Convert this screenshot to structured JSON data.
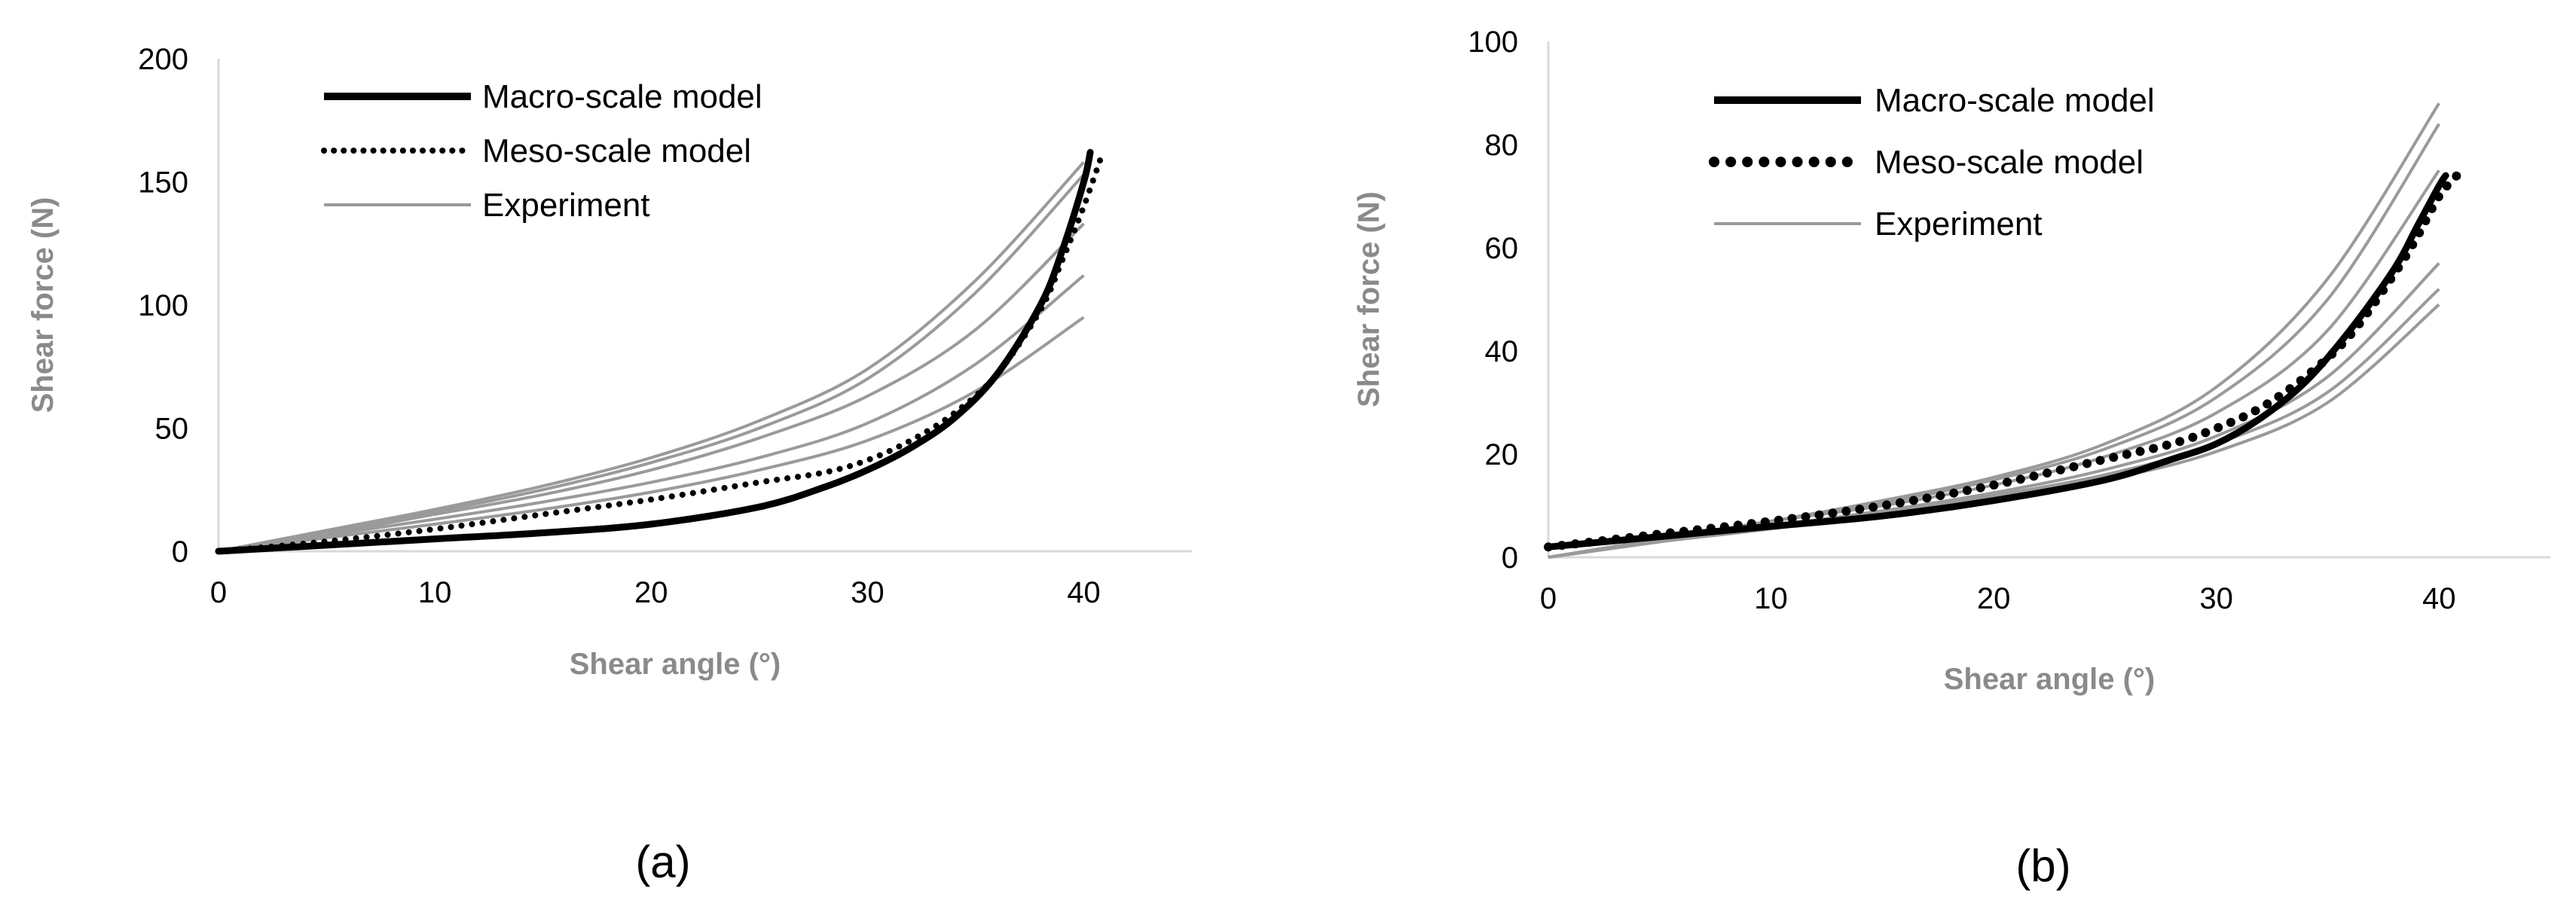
{
  "chart_data": [
    {
      "type": "line",
      "panel_label": "(a)",
      "xlabel": "Shear angle (°)",
      "ylabel": "Shear force (N)",
      "xlim": [
        0,
        45
      ],
      "ylim": [
        0,
        200
      ],
      "xticks": [
        0,
        10,
        20,
        30,
        40
      ],
      "yticks": [
        0,
        50,
        100,
        150,
        200
      ],
      "grid": false,
      "legend_position": "top-left",
      "series": [
        {
          "name": "Macro-scale model",
          "style": "solid",
          "color": "#000000",
          "x": [
            0,
            5,
            10,
            15,
            20,
            25,
            28,
            30,
            32,
            34,
            36,
            38,
            39,
            40,
            40.3
          ],
          "y": [
            0,
            2.5,
            5,
            7.5,
            11,
            18,
            26,
            33,
            42,
            54,
            72,
            100,
            122,
            150,
            162
          ]
        },
        {
          "name": "Meso-scale model",
          "style": "dotted",
          "color": "#000000",
          "x": [
            0,
            5,
            10,
            15,
            20,
            25,
            28,
            30,
            32,
            34,
            36,
            38,
            39,
            40,
            40.8
          ],
          "y": [
            0,
            4,
            9,
            15,
            21,
            28,
            32,
            37,
            45,
            56,
            72,
            98,
            118,
            140,
            160
          ]
        },
        {
          "name": "Experiment",
          "style": "solid",
          "color": "#9a9a9a",
          "x": [
            0,
            5,
            10,
            15,
            20,
            25,
            30,
            35,
            40
          ],
          "y": [
            0,
            7,
            15,
            23,
            33,
            46,
            63,
            90,
            133
          ]
        },
        {
          "name": "",
          "style": "solid",
          "color": "#9a9a9a",
          "x": [
            0,
            5,
            10,
            15,
            20,
            25,
            30,
            35,
            40
          ],
          "y": [
            0,
            8,
            16,
            25,
            36,
            50,
            70,
            105,
            153
          ]
        },
        {
          "name": "",
          "style": "solid",
          "color": "#9a9a9a",
          "x": [
            0,
            5,
            10,
            15,
            20,
            25,
            30,
            35,
            40
          ],
          "y": [
            0,
            8.5,
            17,
            26.5,
            38,
            53,
            74,
            110,
            158
          ]
        },
        {
          "name": "",
          "style": "solid",
          "color": "#9a9a9a",
          "x": [
            0,
            5,
            10,
            15,
            20,
            25,
            30,
            35,
            40
          ],
          "y": [
            0,
            6.5,
            13,
            20,
            28,
            38,
            52,
            76,
            112
          ]
        },
        {
          "name": "",
          "style": "solid",
          "color": "#9a9a9a",
          "x": [
            0,
            5,
            10,
            15,
            20,
            25,
            30,
            35,
            40
          ],
          "y": [
            0,
            5.5,
            11,
            17,
            24,
            33,
            45,
            65,
            95
          ]
        }
      ]
    },
    {
      "type": "line",
      "panel_label": "(b)",
      "xlabel": "Shear angle (°)",
      "ylabel": "Shear force (N)",
      "xlim": [
        0,
        45
      ],
      "ylim": [
        0,
        100
      ],
      "xticks": [
        0,
        10,
        20,
        30,
        40
      ],
      "yticks": [
        0,
        20,
        40,
        60,
        80,
        100
      ],
      "grid": false,
      "legend_position": "top-left",
      "series": [
        {
          "name": "Macro-scale model",
          "style": "solid",
          "color": "#000000",
          "x": [
            0,
            5,
            10,
            15,
            20,
            25,
            28,
            30,
            32,
            34,
            36,
            38,
            39,
            40,
            40.3
          ],
          "y": [
            2,
            4,
            6,
            8,
            11,
            15,
            19,
            22,
            27,
            34,
            44,
            56,
            64,
            72,
            74
          ]
        },
        {
          "name": "Meso-scale model",
          "style": "dotted",
          "color": "#000000",
          "x": [
            0,
            5,
            10,
            15,
            20,
            25,
            28,
            30,
            32,
            34,
            36,
            38,
            39,
            40,
            40.8
          ],
          "y": [
            2,
            4.5,
            7,
            10,
            14,
            19,
            22,
            25,
            29,
            35,
            43,
            55,
            62,
            70,
            74
          ]
        },
        {
          "name": "Experiment",
          "style": "solid",
          "color": "#9a9a9a",
          "x": [
            0,
            5,
            10,
            15,
            20,
            25,
            30,
            35,
            40
          ],
          "y": [
            0,
            3.5,
            7,
            11,
            15.5,
            22,
            33,
            54,
            88
          ]
        },
        {
          "name": "",
          "style": "solid",
          "color": "#9a9a9a",
          "x": [
            0,
            5,
            10,
            15,
            20,
            25,
            30,
            35,
            40
          ],
          "y": [
            0,
            3.5,
            7,
            10.5,
            15,
            21,
            31,
            50,
            84
          ]
        },
        {
          "name": "",
          "style": "solid",
          "color": "#9a9a9a",
          "x": [
            0,
            5,
            10,
            15,
            20,
            25,
            30,
            35,
            40
          ],
          "y": [
            0,
            3.5,
            7,
            10,
            14,
            19.5,
            28,
            44,
            75
          ]
        },
        {
          "name": "",
          "style": "solid",
          "color": "#9a9a9a",
          "x": [
            0,
            5,
            10,
            15,
            20,
            25,
            30,
            35,
            40
          ],
          "y": [
            0,
            3,
            6,
            9,
            12.5,
            17,
            23.5,
            35,
            57
          ]
        },
        {
          "name": "",
          "style": "solid",
          "color": "#9a9a9a",
          "x": [
            0,
            5,
            10,
            15,
            20,
            25,
            30,
            35,
            40
          ],
          "y": [
            0,
            3,
            6,
            9,
            12,
            16,
            22,
            32,
            52
          ]
        },
        {
          "name": "",
          "style": "solid",
          "color": "#9a9a9a",
          "x": [
            0,
            5,
            10,
            15,
            20,
            25,
            30,
            35,
            40
          ],
          "y": [
            0,
            3,
            5.5,
            8.5,
            11.5,
            15,
            20.5,
            30,
            49
          ]
        }
      ]
    }
  ]
}
